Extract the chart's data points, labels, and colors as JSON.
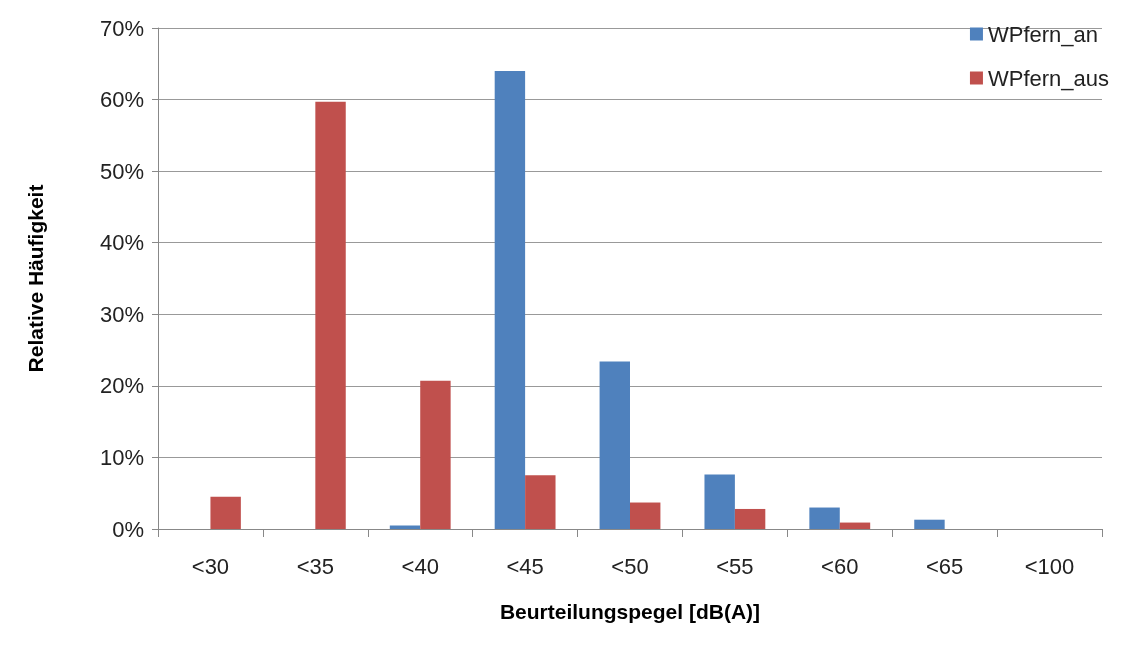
{
  "chart_data": {
    "type": "bar",
    "xlabel": "Beurteilungspegel [dB(A)]",
    "ylabel": "Relative Häufigkeit",
    "categories": [
      "<30",
      "<35",
      "<40",
      "<45",
      "<50",
      "<55",
      "<60",
      "<65",
      "<100"
    ],
    "series": [
      {
        "name": "WPfern_an",
        "color": "#4f81bd",
        "values": [
          0,
          0,
          0.5,
          64.0,
          23.4,
          7.6,
          3.0,
          1.3,
          0
        ]
      },
      {
        "name": "WPfern_aus",
        "color": "#c0504d",
        "values": [
          4.5,
          59.7,
          20.7,
          7.5,
          3.7,
          2.8,
          0.9,
          0,
          0
        ]
      }
    ],
    "ylim": [
      0,
      70
    ],
    "yticks": [
      {
        "value": 0,
        "label": "0%"
      },
      {
        "value": 10,
        "label": "10%"
      },
      {
        "value": 20,
        "label": "20%"
      },
      {
        "value": 30,
        "label": "30%"
      },
      {
        "value": 40,
        "label": "40%"
      },
      {
        "value": 50,
        "label": "50%"
      },
      {
        "value": 60,
        "label": "60%"
      },
      {
        "value": 70,
        "label": "70%"
      }
    ],
    "grid": "y",
    "legend": "top right"
  }
}
